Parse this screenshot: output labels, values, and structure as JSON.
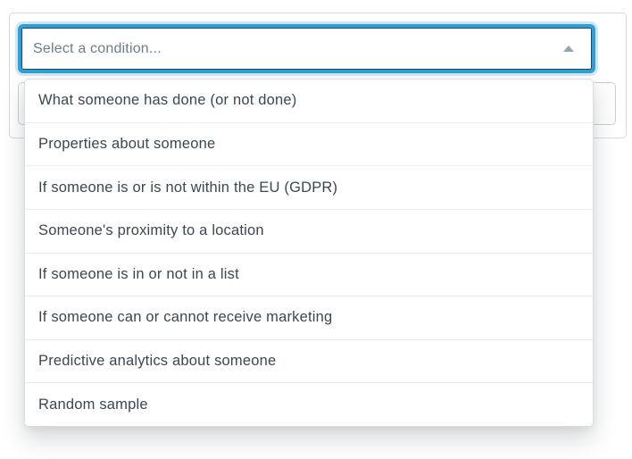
{
  "select": {
    "placeholder": "Select a condition...",
    "caret_icon": "caret-up-icon"
  },
  "menu": {
    "items": [
      "What someone has done (or not done)",
      "Properties about someone",
      "If someone is or is not within the EU (GDPR)",
      "Someone's proximity to a location",
      "If someone is in or not in a list",
      "If someone can or cannot receive marketing",
      "Predictive analytics about someone",
      "Random sample"
    ]
  },
  "colors": {
    "accent_blue": "#2d9fd9",
    "focus_ring_glow": "#cfe7f5",
    "inner_border": "#23455a",
    "placeholder_text": "#6e7d88",
    "item_text": "#3b4750",
    "card_border": "#d6dade",
    "separator": "#eceef0",
    "caret_gray": "#9aa4ab"
  }
}
